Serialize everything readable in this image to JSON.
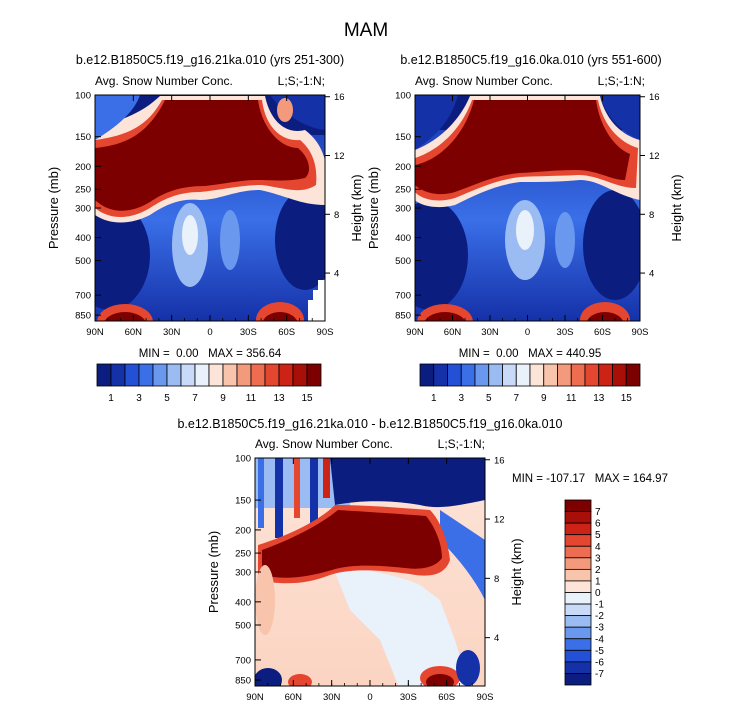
{
  "figure_title": "MAM",
  "chart_data": [
    {
      "type": "contour",
      "title": "b.e12.B1850C5.f19_g16.21ka.010 (yrs 251-300)",
      "left_string": "Avg. Snow Number Conc.",
      "right_string": "L;S;-1:N;",
      "ylabel": "Pressure (mb)",
      "ylabel_right": "Height (km)",
      "xticks": [
        "90N",
        "60N",
        "30N",
        "0",
        "30S",
        "60S",
        "90S"
      ],
      "yticks": [
        "100",
        "150",
        "200",
        "250",
        "300",
        "400",
        "500",
        "700",
        "850"
      ],
      "height_ticks": [
        "16",
        "12",
        "8",
        "4"
      ],
      "min": "0.00",
      "max": "356.64",
      "stats": "MIN =  0.00   MAX = 356.64",
      "colorbar": {
        "orientation": "horizontal",
        "tick_labels": [
          "1",
          "3",
          "5",
          "7",
          "9",
          "11",
          "13",
          "15"
        ],
        "colors": [
          "#0b1e80",
          "#1531a8",
          "#2350d4",
          "#3a6fe8",
          "#6a98ee",
          "#9bbcf3",
          "#c9daf8",
          "#e9f1fb",
          "#fde4d8",
          "#f9c4ac",
          "#f49a7c",
          "#ee6c50",
          "#e54630",
          "#cd2216",
          "#a80f08",
          "#7d0000"
        ]
      }
    },
    {
      "type": "contour",
      "title": "b.e12.B1850C5.f19_g16.0ka.010 (yrs 551-600)",
      "left_string": "Avg. Snow Number Conc.",
      "right_string": "L;S;-1:N;",
      "ylabel": "Pressure (mb)",
      "ylabel_right": "Height (km)",
      "xticks": [
        "90N",
        "60N",
        "30N",
        "0",
        "30S",
        "60S",
        "90S"
      ],
      "yticks": [
        "100",
        "150",
        "200",
        "250",
        "300",
        "400",
        "500",
        "700",
        "850"
      ],
      "height_ticks": [
        "16",
        "12",
        "8",
        "4"
      ],
      "min": "0.00",
      "max": "440.95",
      "stats": "MIN =  0.00   MAX = 440.95",
      "colorbar": {
        "orientation": "horizontal",
        "tick_labels": [
          "1",
          "3",
          "5",
          "7",
          "9",
          "11",
          "13",
          "15"
        ],
        "colors": [
          "#0b1e80",
          "#1531a8",
          "#2350d4",
          "#3a6fe8",
          "#6a98ee",
          "#9bbcf3",
          "#c9daf8",
          "#e9f1fb",
          "#fde4d8",
          "#f9c4ac",
          "#f49a7c",
          "#ee6c50",
          "#e54630",
          "#cd2216",
          "#a80f08",
          "#7d0000"
        ]
      }
    },
    {
      "type": "contour",
      "title": "b.e12.B1850C5.f19_g16.21ka.010 - b.e12.B1850C5.f19_g16.0ka.010",
      "left_string": "Avg. Snow Number Conc.",
      "right_string": "L;S;-1:N;",
      "ylabel": "Pressure (mb)",
      "ylabel_right": "Height (km)",
      "xticks": [
        "90N",
        "60N",
        "30N",
        "0",
        "30S",
        "60S",
        "90S"
      ],
      "yticks": [
        "100",
        "150",
        "200",
        "250",
        "300",
        "400",
        "500",
        "700",
        "850"
      ],
      "height_ticks": [
        "16",
        "12",
        "8",
        "4"
      ],
      "min": "-107.17",
      "max": "164.97",
      "stats": "MIN = -107.17   MAX = 164.97",
      "colorbar": {
        "orientation": "vertical",
        "tick_labels": [
          "7",
          "6",
          "5",
          "4",
          "3",
          "2",
          "1",
          "0",
          "-1",
          "-2",
          "-3",
          "-4",
          "-5",
          "-6",
          "-7"
        ],
        "colors": [
          "#7d0000",
          "#a80f08",
          "#cd2216",
          "#e54630",
          "#ee6c50",
          "#f49a7c",
          "#f9c4ac",
          "#fde4d8",
          "#e9f1fb",
          "#c9daf8",
          "#9bbcf3",
          "#6a98ee",
          "#3a6fe8",
          "#2350d4",
          "#1531a8",
          "#0b1e80"
        ]
      }
    }
  ]
}
